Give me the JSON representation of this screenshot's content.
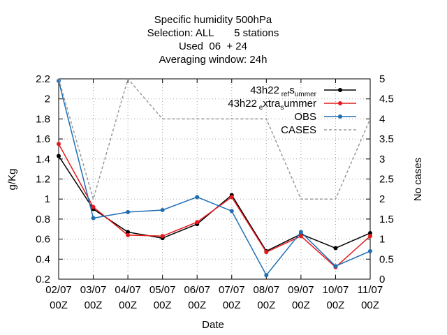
{
  "chart_data": {
    "type": "line",
    "title_lines": [
      "Specific humidity 500hPa",
      "Selection: ALL       5 stations",
      "Used  06  + 24",
      "Averaging window: 24h"
    ],
    "xlabel": "Date",
    "ylabel": "g/Kg",
    "y2label": "No cases",
    "categories": [
      [
        "02/07",
        "00Z"
      ],
      [
        "03/07",
        "00Z"
      ],
      [
        "04/07",
        "00Z"
      ],
      [
        "05/07",
        "00Z"
      ],
      [
        "06/07",
        "00Z"
      ],
      [
        "07/07",
        "00Z"
      ],
      [
        "08/07",
        "00Z"
      ],
      [
        "09/07",
        "00Z"
      ],
      [
        "10/07",
        "00Z"
      ],
      [
        "11/07",
        "00Z"
      ]
    ],
    "ylim": [
      0.2,
      2.2
    ],
    "y_ticks": [
      "0.2",
      "0.4",
      "0.6",
      "0.8",
      "1",
      "1.2",
      "1.4",
      "1.6",
      "1.8",
      "2",
      "2.2"
    ],
    "y2lim": [
      0,
      5
    ],
    "y2_ticks": [
      "0",
      "0.5",
      "1",
      "1.5",
      "2",
      "2.5",
      "3",
      "3.5",
      "4",
      "4.5",
      "5"
    ],
    "grid": true,
    "legend_position": "top-right",
    "series": [
      {
        "name": "43h22_ref_summer",
        "legend_parts": [
          "43h22",
          "ref",
          "s",
          "ummer"
        ],
        "axis": "y",
        "color": "#000000",
        "values": [
          1.43,
          0.9,
          0.67,
          0.61,
          0.75,
          1.04,
          0.48,
          0.65,
          0.51,
          0.66
        ]
      },
      {
        "name": "43h22_extra_summer",
        "legend_parts": [
          "43h22",
          "e",
          "xtra",
          "s",
          "ummer"
        ],
        "axis": "y",
        "color": "#e41a1c",
        "values": [
          1.55,
          0.92,
          0.64,
          0.63,
          0.77,
          1.02,
          0.47,
          0.63,
          0.32,
          0.63
        ]
      },
      {
        "name": "OBS",
        "legend_parts": [
          "OBS"
        ],
        "axis": "y",
        "color": "#1f6eb3",
        "values": [
          2.18,
          0.81,
          0.87,
          0.89,
          1.02,
          0.88,
          0.24,
          0.67,
          0.33,
          0.48
        ]
      },
      {
        "name": "CASES",
        "legend_parts": [
          "CASES"
        ],
        "axis": "y2",
        "color": "#999999",
        "values": [
          5,
          2,
          5,
          4,
          4,
          4,
          4,
          2,
          2,
          4
        ]
      }
    ]
  }
}
